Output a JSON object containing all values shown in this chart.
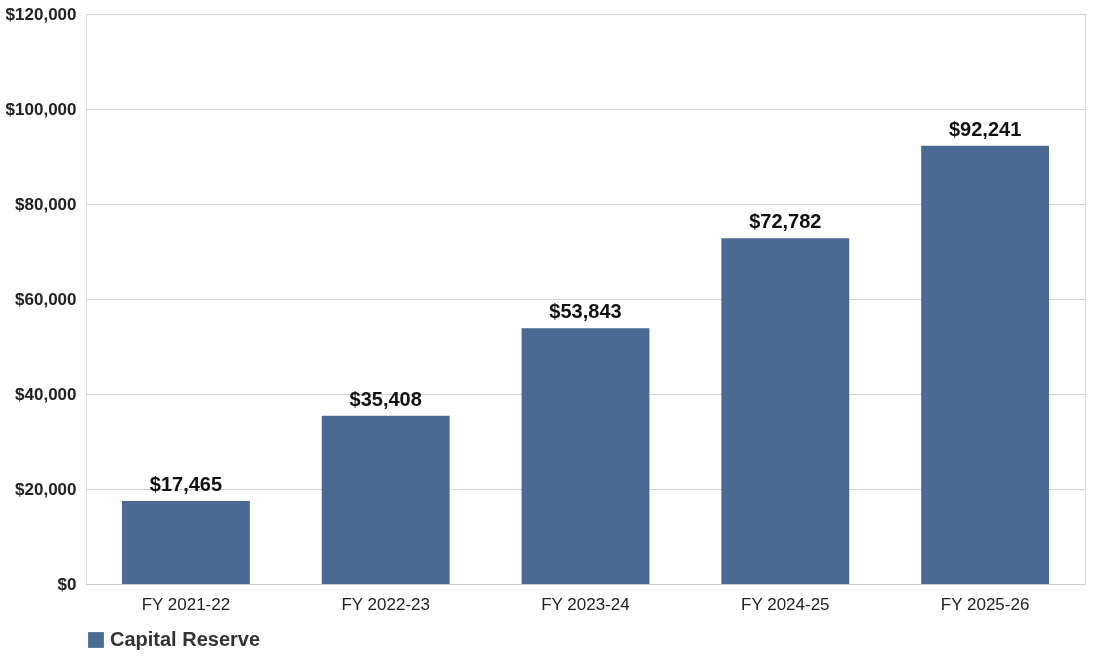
{
  "chart_data": {
    "type": "bar",
    "categories": [
      "FY 2021-22",
      "FY 2022-23",
      "FY 2023-24",
      "FY 2024-25",
      "FY 2025-26"
    ],
    "series": [
      {
        "name": "Capital Reserve",
        "color": "#4a6a94",
        "values": [
          17465,
          35408,
          53843,
          72782,
          92241
        ],
        "value_labels": [
          "$17,465",
          "$35,408",
          "$53,843",
          "$72,782",
          "$92,241"
        ]
      }
    ],
    "ylim": [
      0,
      120000
    ],
    "yticks": [
      {
        "value": 0,
        "label": "$0"
      },
      {
        "value": 20000,
        "label": "$20,000"
      },
      {
        "value": 40000,
        "label": "$40,000"
      },
      {
        "value": 60000,
        "label": "$60,000"
      },
      {
        "value": 80000,
        "label": "$80,000"
      },
      {
        "value": 100000,
        "label": "$100,000"
      },
      {
        "value": 120000,
        "label": "$120,000"
      }
    ],
    "grid": "y",
    "legend": "bottom"
  }
}
